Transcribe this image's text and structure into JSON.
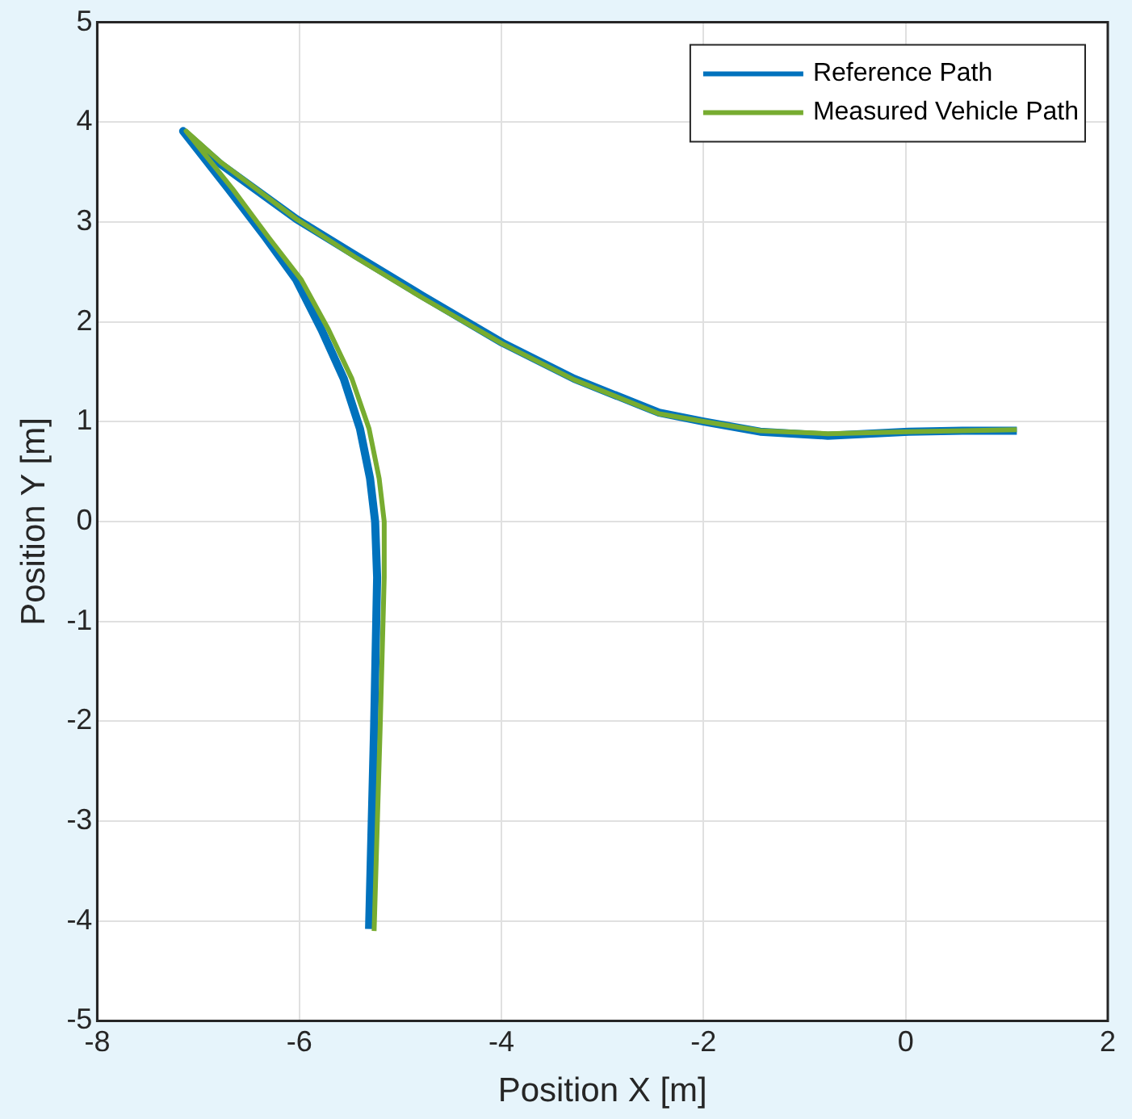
{
  "chart_data": {
    "type": "line",
    "xlabel": "Position X [m]",
    "ylabel": "Position Y [m]",
    "xlim": [
      -8,
      2
    ],
    "xticks": [
      -8,
      -6,
      -4,
      -2,
      0,
      2
    ],
    "ylim": [
      -5,
      5
    ],
    "yticks": [
      -5,
      -4,
      -3,
      -2,
      -1,
      0,
      1,
      2,
      3,
      4,
      5
    ],
    "grid": true,
    "legend": "top right",
    "marker": "none",
    "line_style": "solid",
    "series": [
      {
        "name": "Reference Path",
        "color": "#0072bd",
        "x": [
          -5.31,
          -5.26,
          -5.23,
          -5.25,
          -5.3,
          -5.4,
          -5.56,
          -5.78,
          -6.03,
          -6.33,
          -6.7,
          -7.15,
          -6.78,
          -6.03,
          -5.45,
          -4.78,
          -3.99,
          -3.28,
          -2.44,
          -1.99,
          -1.44,
          -0.77,
          0.03,
          0.56,
          1.1
        ],
        "values": [
          -4.08,
          -2.06,
          -0.56,
          0,
          0.43,
          0.93,
          1.43,
          1.92,
          2.42,
          2.84,
          3.33,
          3.91,
          3.58,
          3.03,
          2.67,
          2.26,
          1.79,
          1.43,
          1.09,
          1,
          0.9,
          0.86,
          0.9,
          0.91,
          0.91
        ]
      },
      {
        "name": "Measured Vehicle Path",
        "color": "#77ac30",
        "x": [
          -5.26,
          -5.2,
          -5.16,
          -5.16,
          -5.21,
          -5.31,
          -5.48,
          -5.71,
          -5.98,
          -6.3,
          -6.66,
          -7.12,
          -6.78,
          -6.03,
          -5.45,
          -4.78,
          -3.99,
          -3.28,
          -2.44,
          -1.99,
          -1.44,
          -0.77,
          0.03,
          0.56,
          1.1
        ],
        "values": [
          -4.1,
          -2.06,
          -0.56,
          0,
          0.43,
          0.93,
          1.43,
          1.92,
          2.42,
          2.84,
          3.33,
          3.91,
          3.6,
          3.03,
          2.65,
          2.24,
          1.78,
          1.42,
          1.08,
          1,
          0.91,
          0.88,
          0.9,
          0.91,
          0.92
        ]
      }
    ]
  }
}
